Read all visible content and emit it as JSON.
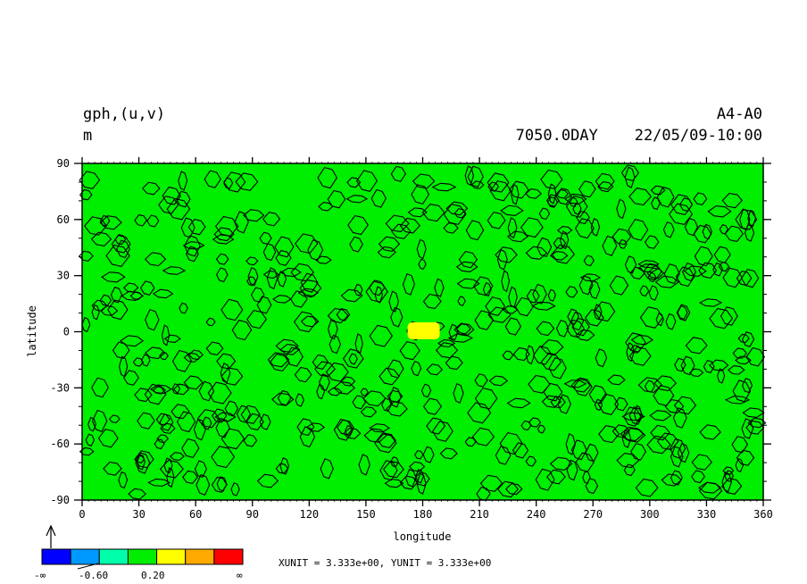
{
  "header": {
    "left_line1": "gph,(u,v)",
    "left_line2": "m",
    "right_line1": "A4-A0",
    "right_line2": "7050.0DAY    22/05/09-10:00"
  },
  "colorbar": {
    "labels": [
      "-∞",
      "-0.60",
      "0.20",
      "∞"
    ],
    "colors": [
      "#0000ff",
      "#0099ff",
      "#00ffaa",
      "#00ee00",
      "#ffff00",
      "#ffaa00",
      "#ff0000"
    ]
  },
  "units_text": "XUNIT = 3.333e+00, YUNIT = 3.333e+00",
  "chart_data": {
    "type": "heatmap",
    "xlabel": "longitude",
    "ylabel": "latitude",
    "xlim": [
      0,
      360
    ],
    "ylim": [
      -90,
      90
    ],
    "xticks": [
      0,
      30,
      60,
      90,
      120,
      150,
      180,
      210,
      240,
      270,
      300,
      330,
      360
    ],
    "yticks": [
      90,
      60,
      30,
      0,
      -30,
      -60,
      -90
    ],
    "background_fill": "#00ee00",
    "highlight_regions": [
      {
        "lon_min": 172,
        "lon_max": 189,
        "lat_min": -4,
        "lat_max": 5,
        "color": "#ffff00"
      }
    ]
  }
}
